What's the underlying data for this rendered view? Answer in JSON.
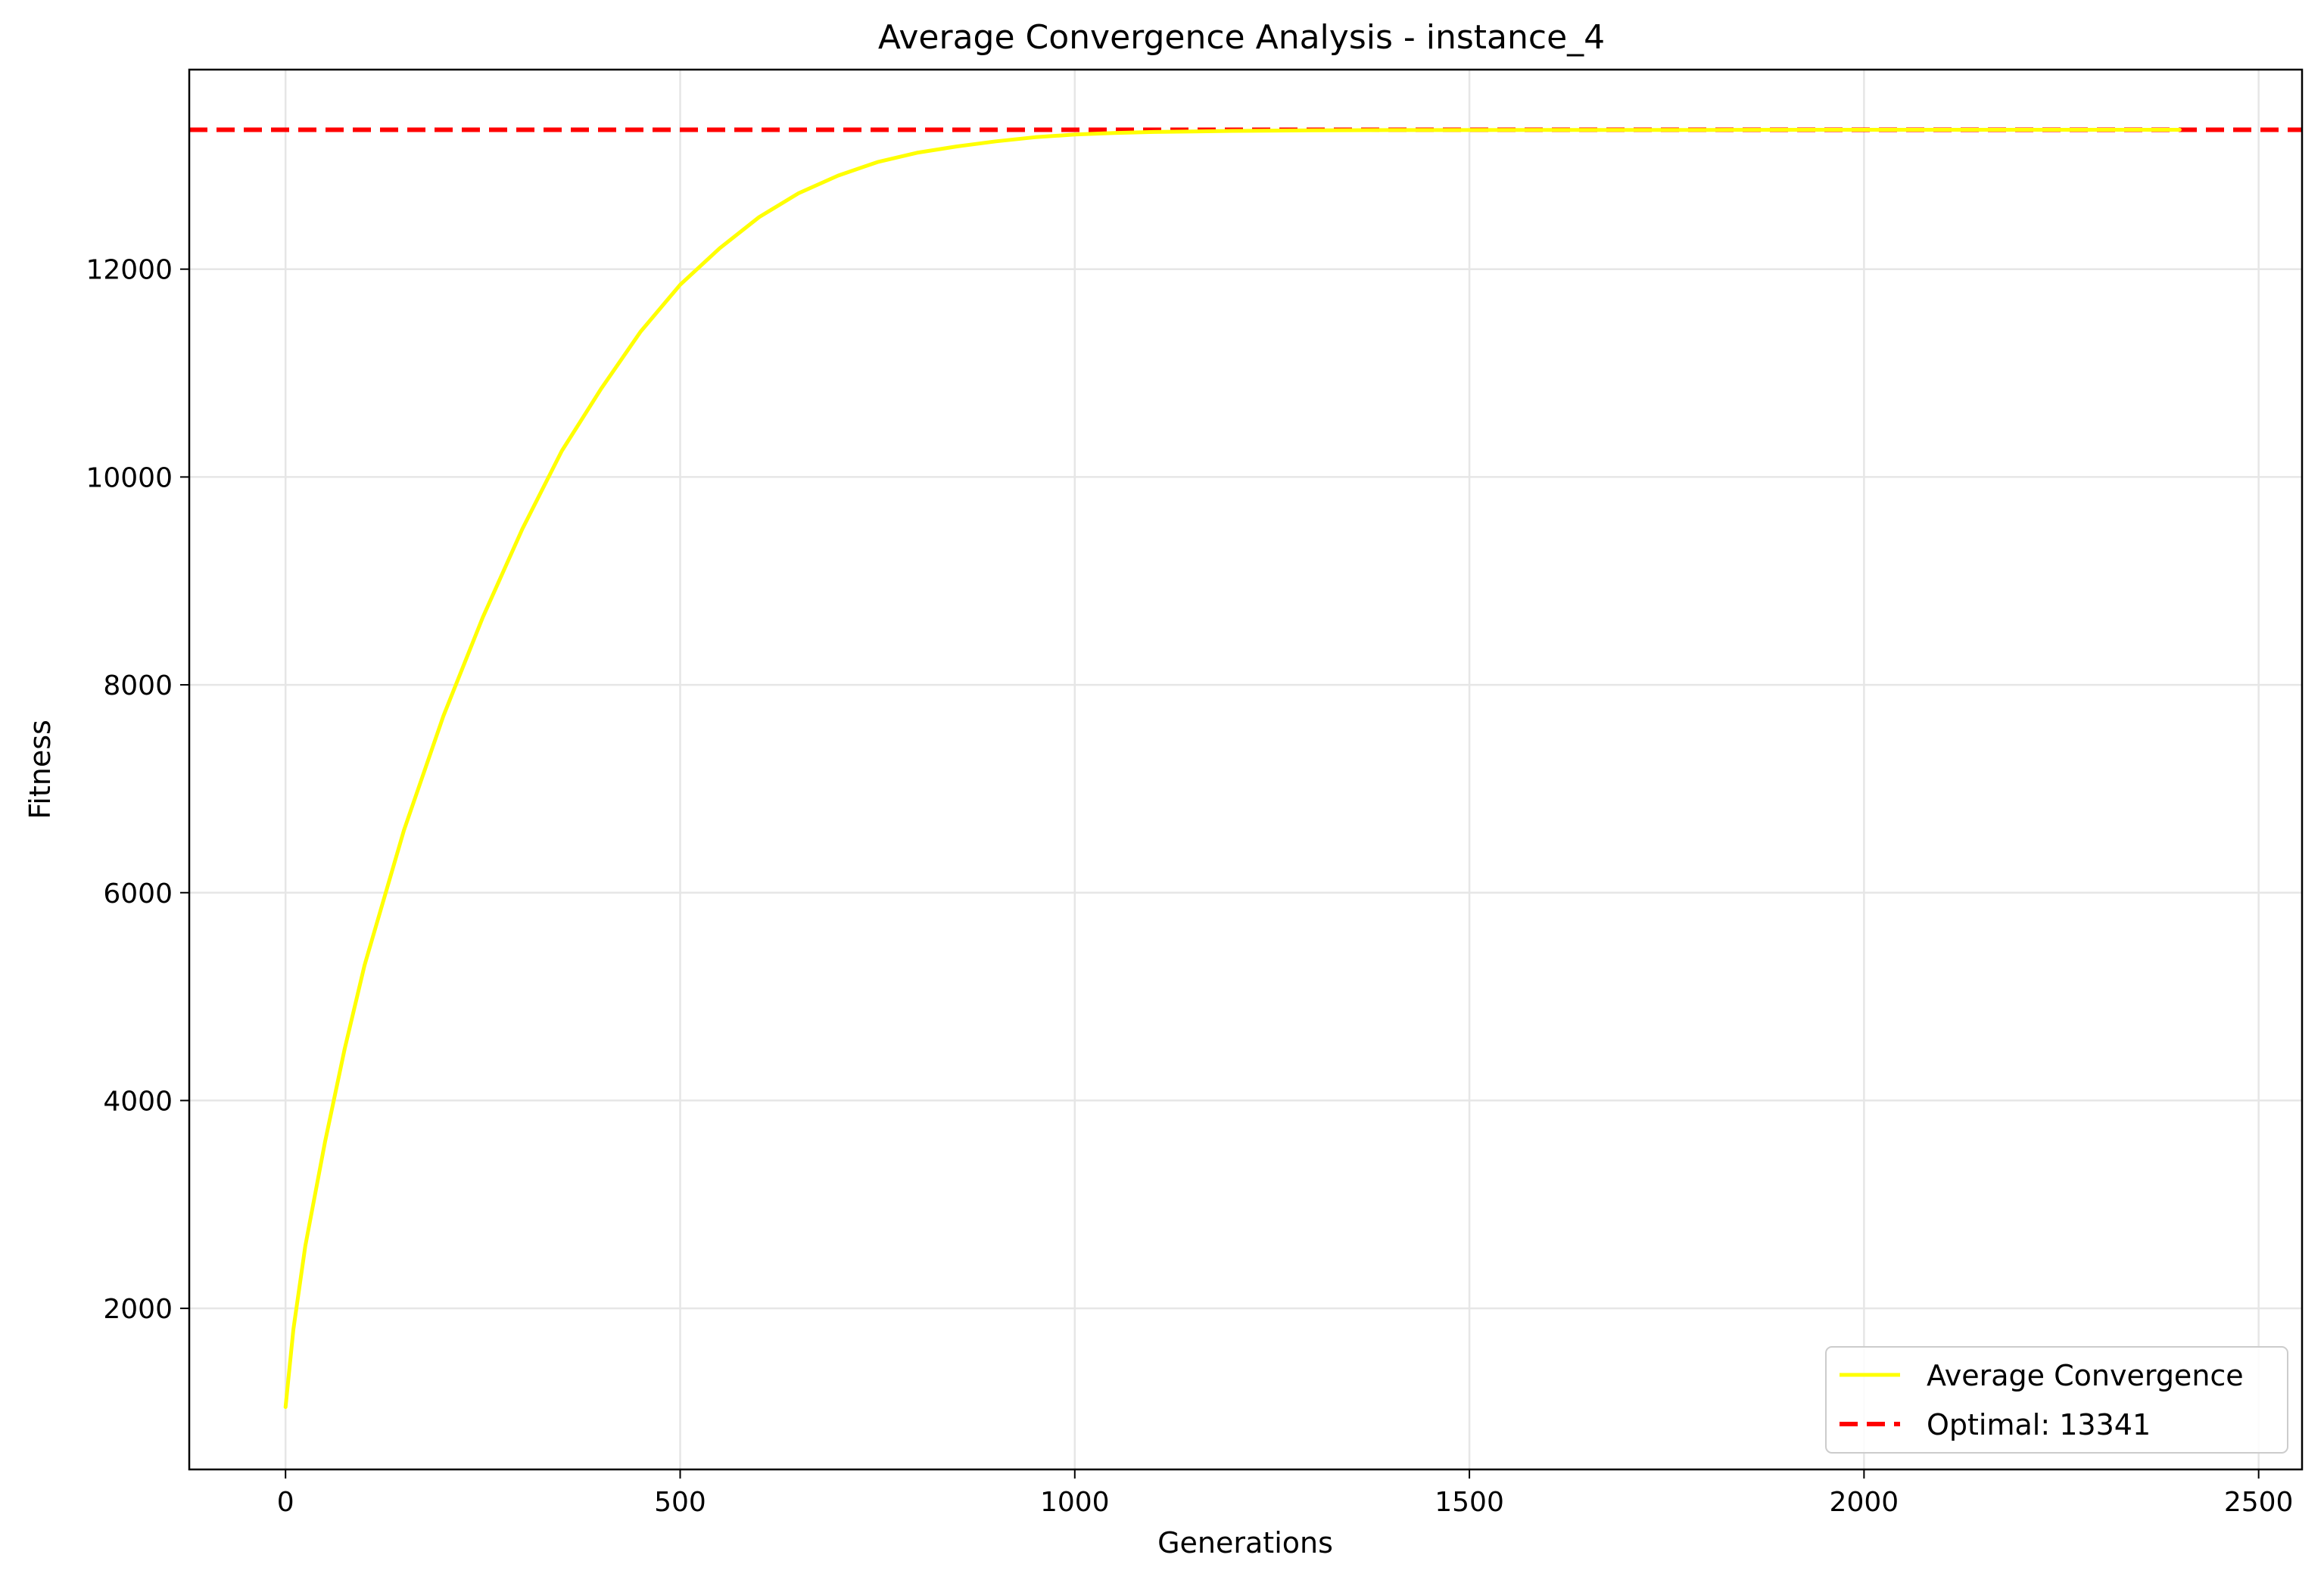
{
  "chart_data": {
    "type": "line",
    "title": "Average Convergence Analysis - instance_4",
    "xlabel": "Generations",
    "ylabel": "Fitness",
    "xlim": [
      -122,
      2555
    ],
    "ylim": [
      450,
      13920
    ],
    "x_ticks": [
      0,
      500,
      1000,
      1500,
      2000,
      2500
    ],
    "y_ticks": [
      2000,
      4000,
      6000,
      8000,
      10000,
      12000
    ],
    "grid": true,
    "legend_position": "bottom-right",
    "series": [
      {
        "name": "Average Convergence",
        "color": "#ffff00",
        "style": "solid",
        "x": [
          0,
          10,
          25,
          50,
          75,
          100,
          150,
          200,
          250,
          300,
          350,
          400,
          450,
          500,
          550,
          600,
          650,
          700,
          750,
          800,
          850,
          900,
          950,
          1000,
          1050,
          1100,
          1150,
          1200,
          1300,
          1400,
          1600,
          1800,
          2000,
          2200,
          2400
        ],
        "y": [
          1050,
          1800,
          2600,
          3600,
          4500,
          5300,
          6600,
          7700,
          8650,
          9500,
          10250,
          10850,
          11400,
          11850,
          12200,
          12500,
          12730,
          12900,
          13030,
          13120,
          13180,
          13230,
          13270,
          13295,
          13310,
          13320,
          13325,
          13330,
          13335,
          13338,
          13340,
          13340,
          13341,
          13341,
          13341
        ]
      },
      {
        "name": "Optimal: 13341",
        "color": "#ff0000",
        "style": "dashed",
        "constant_y": 13341
      }
    ]
  }
}
